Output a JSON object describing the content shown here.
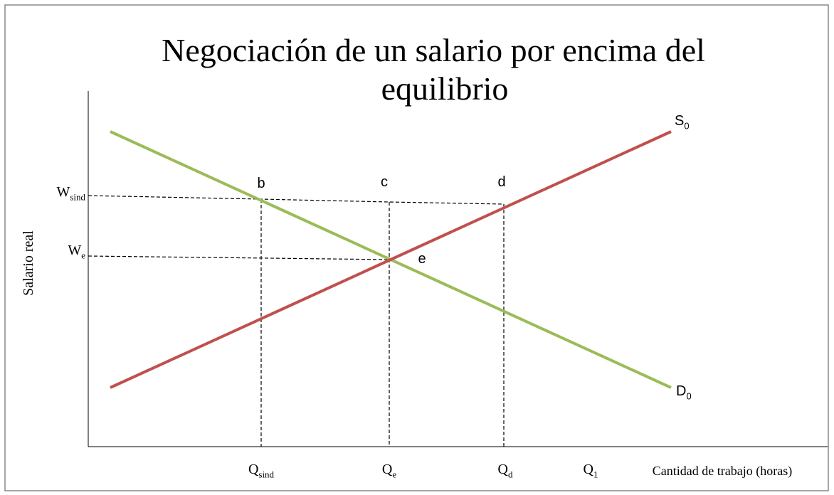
{
  "title": {
    "line1": "Negociación  de un salario por encima del",
    "line2": "equilibrio"
  },
  "y_axis_label": "Salario real",
  "x_axis_label": "Cantidad de trabajo (horas)",
  "y_labels": [
    {
      "base": "W",
      "sub": "sind"
    },
    {
      "base": "W",
      "sub": "e"
    }
  ],
  "x_labels": [
    {
      "base": "Q",
      "sub": "sind"
    },
    {
      "base": "Q",
      "sub": "e"
    },
    {
      "base": "Q",
      "sub": "d"
    },
    {
      "base": "Q",
      "sub": "1"
    }
  ],
  "points": [
    "b",
    "c",
    "d",
    "e"
  ],
  "curves": [
    {
      "base": "S",
      "sub": "0"
    },
    {
      "base": "D",
      "sub": "0"
    }
  ]
}
